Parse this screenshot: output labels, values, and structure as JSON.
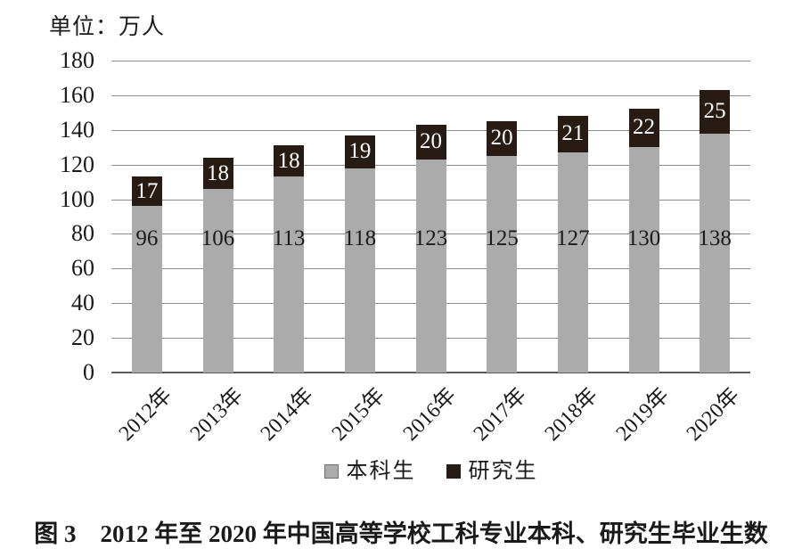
{
  "unit_label": "单位：万人",
  "caption": "图 3　2012 年至 2020 年中国高等学校工科专业本科、研究生毕业生数",
  "colors": {
    "undergrad_fill": "#acabab",
    "grad_fill": "#271b14",
    "gridline": "#8e8e8e",
    "axis_line": "#5c5c5c",
    "bar_label_dark": "#1a1a1a",
    "bar_label_light": "#ffffff",
    "legend_swatch_border": "#6e6e6e",
    "text": "#1a1a1a"
  },
  "chart_data": {
    "type": "bar",
    "stacked": true,
    "title": "",
    "xlabel": "",
    "ylabel": "单位：万人",
    "categories": [
      "2012年",
      "2013年",
      "2014年",
      "2015年",
      "2016年",
      "2017年",
      "2018年",
      "2019年",
      "2020年"
    ],
    "series": [
      {
        "name": "本科生",
        "values": [
          96,
          106,
          113,
          118,
          123,
          125,
          127,
          130,
          138
        ]
      },
      {
        "name": "研究生",
        "values": [
          17,
          18,
          18,
          19,
          20,
          20,
          21,
          22,
          25
        ]
      }
    ],
    "totals": [
      113,
      124,
      131,
      137,
      143,
      145,
      148,
      152,
      163
    ],
    "ylim": [
      0,
      180
    ],
    "ytick_step": 20,
    "yticks": [
      0,
      20,
      40,
      60,
      80,
      100,
      120,
      140,
      160,
      180
    ],
    "grid": true,
    "value_labels": true,
    "legend_position": "bottom"
  }
}
